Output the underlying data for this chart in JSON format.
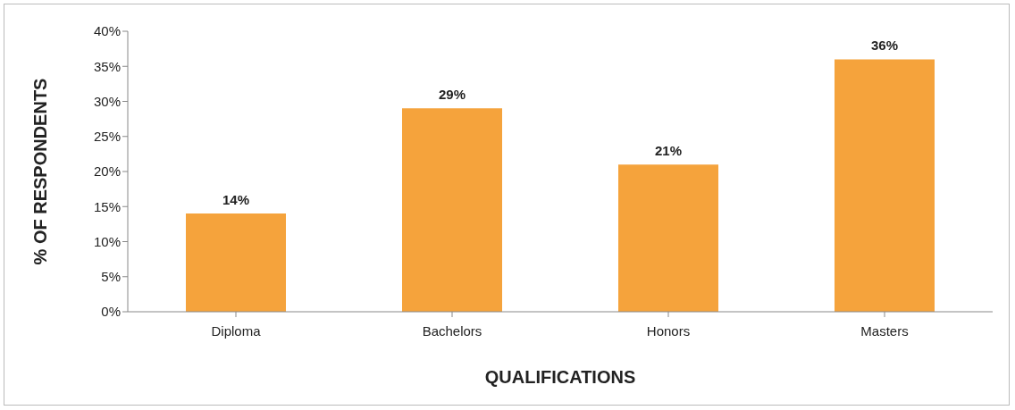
{
  "chart_data": {
    "type": "bar",
    "xlabel": "QUALIFICATIONS",
    "ylabel": "% OF RESPONDENTS",
    "categories": [
      "Diploma",
      "Bachelors",
      "Honors",
      "Masters"
    ],
    "values": [
      14,
      29,
      21,
      36
    ],
    "color": "#f5a33c",
    "value_labels": [
      "14%",
      "29%",
      "21%",
      "36%"
    ],
    "ylim": [
      0,
      40
    ],
    "yticks": [
      {
        "value": 0,
        "label": "0%"
      },
      {
        "value": 5,
        "label": "5%"
      },
      {
        "value": 10,
        "label": "10%"
      },
      {
        "value": 15,
        "label": "15%"
      },
      {
        "value": 20,
        "label": "20%"
      },
      {
        "value": 25,
        "label": "25%"
      },
      {
        "value": 30,
        "label": "30%"
      },
      {
        "value": 35,
        "label": "35%"
      },
      {
        "value": 40,
        "label": "40%"
      }
    ],
    "grid": false,
    "legend": false
  }
}
